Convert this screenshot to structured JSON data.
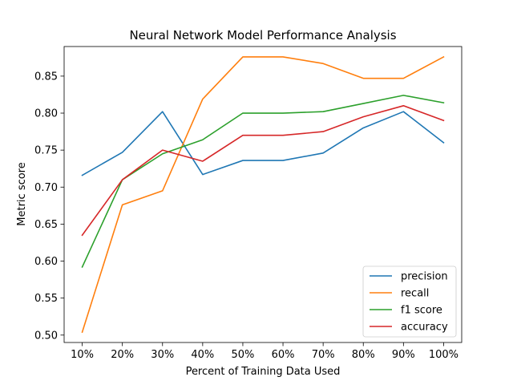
{
  "chart_data": {
    "type": "line",
    "title": "Neural Network Model Performance Analysis",
    "xlabel": "Percent of Training Data Used",
    "ylabel": "Metric score",
    "categories": [
      "10%",
      "20%",
      "30%",
      "40%",
      "50%",
      "60%",
      "70%",
      "80%",
      "90%",
      "100%"
    ],
    "ylim": [
      0.49,
      0.89
    ],
    "yticks": [
      0.5,
      0.55,
      0.6,
      0.65,
      0.7,
      0.75,
      0.8,
      0.85
    ],
    "ytick_labels": [
      "0.50",
      "0.55",
      "0.60",
      "0.65",
      "0.70",
      "0.75",
      "0.80",
      "0.85"
    ],
    "grid": false,
    "legend_position": "lower-right",
    "series": [
      {
        "name": "precision",
        "color": "#1f77b4",
        "values": [
          0.716,
          0.747,
          0.802,
          0.717,
          0.736,
          0.736,
          0.746,
          0.78,
          0.802,
          0.76
        ]
      },
      {
        "name": "recall",
        "color": "#ff7f0e",
        "values": [
          0.504,
          0.676,
          0.695,
          0.819,
          0.876,
          0.876,
          0.867,
          0.847,
          0.847,
          0.876
        ]
      },
      {
        "name": "f1 score",
        "color": "#2ca02c",
        "values": [
          0.592,
          0.71,
          0.745,
          0.764,
          0.8,
          0.8,
          0.802,
          0.813,
          0.824,
          0.814
        ]
      },
      {
        "name": "accuracy",
        "color": "#d62728",
        "values": [
          0.635,
          0.71,
          0.75,
          0.735,
          0.77,
          0.77,
          0.775,
          0.795,
          0.81,
          0.79
        ]
      }
    ]
  }
}
